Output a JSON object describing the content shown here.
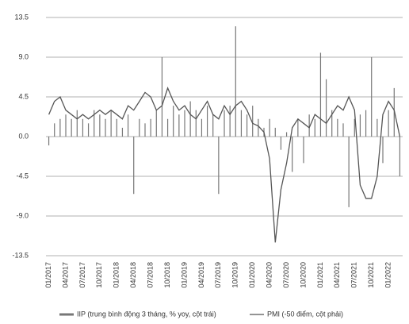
{
  "chart_data": {
    "type": "bar-line",
    "categories": [
      "01/2017",
      null,
      null,
      "04/2017",
      null,
      null,
      "07/2017",
      null,
      null,
      "10/2017",
      null,
      null,
      "01/2018",
      null,
      null,
      "04/2018",
      null,
      null,
      "07/2018",
      null,
      null,
      "10/2018",
      null,
      null,
      "01/2019",
      null,
      null,
      "04/2019",
      null,
      null,
      "07/2019",
      null,
      null,
      "10/2019",
      null,
      null,
      "01/2020",
      null,
      null,
      "04/2020",
      null,
      null,
      "07/2020",
      null,
      null,
      "10/2020",
      null,
      null,
      "01/2021",
      null,
      null,
      "04/2021",
      null,
      null,
      "07/2021",
      null,
      null,
      "10/2021",
      null,
      null,
      "01/2022",
      null,
      null
    ],
    "series": [
      {
        "name": "IIP (trung bình động 3 tháng, % yoy, cột trái)",
        "kind": "bar",
        "color": "#777777",
        "values": [
          -1,
          1.5,
          2,
          2.5,
          2,
          3,
          2,
          1.5,
          3,
          2.5,
          2,
          3,
          2,
          1,
          2.5,
          -6.5,
          2,
          1.5,
          2,
          3,
          9,
          2,
          3.5,
          2.5,
          3,
          4,
          3,
          2,
          3.5,
          2.5,
          -6.5,
          3,
          3.5,
          12.5,
          3,
          2.5,
          3.5,
          2,
          1,
          2,
          1,
          -1.5,
          0.5,
          -4,
          2,
          -3,
          2.5,
          2,
          9.5,
          6.5,
          3,
          2,
          1.5,
          -8,
          2,
          2.5,
          3,
          9,
          2,
          -3,
          3,
          5.5,
          -4.5
        ]
      },
      {
        "name": "PMI (-50 điểm, cột phải)",
        "kind": "line",
        "color": "#555555",
        "values": [
          2.5,
          4,
          4.5,
          3,
          2.5,
          2,
          2.5,
          2,
          2.5,
          3,
          2.5,
          3,
          2.5,
          2,
          3.5,
          3,
          4,
          5,
          4.5,
          3,
          3.5,
          5.5,
          4,
          3,
          3.5,
          2.5,
          2,
          3,
          4,
          2.5,
          2,
          3.5,
          2.5,
          3.5,
          4,
          3,
          1.5,
          1.2,
          0.5,
          -2.5,
          -12,
          -6,
          -3,
          1,
          2,
          1.5,
          1,
          2.5,
          2,
          1.5,
          2.5,
          3.5,
          3,
          4.5,
          3,
          -5.5,
          -7,
          -7,
          -4.5,
          2.5,
          4,
          3,
          0
        ]
      }
    ],
    "ylim": [
      -13.5,
      13.5
    ],
    "yticks": [
      13.5,
      {
        "value": 9,
        "label": "9.0"
      },
      4.5,
      {
        "value": 0,
        "label": "0.0"
      },
      -4.5,
      {
        "value": -9,
        "label": "-9.0"
      },
      -13.5
    ],
    "grid": true
  }
}
